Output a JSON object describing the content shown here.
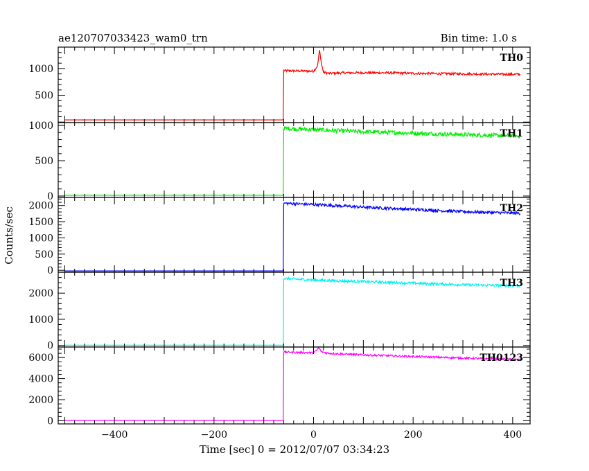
{
  "header": {
    "title": "ae120707033423_wam0_trn",
    "bin_time": "Bin time: 1.0 s"
  },
  "chart_data": {
    "type": "line",
    "title": "ae120707033423_wam0_trn",
    "xlabel": "Time [sec] 0 = 2012/07/07 03:34:23",
    "ylabel": "Counts/sec",
    "xlim": [
      -513,
      435
    ],
    "x_ticks": [
      -400,
      -200,
      0,
      200,
      400
    ],
    "x_tick_labels": [
      "−400",
      "−200",
      "0",
      "200",
      "400"
    ],
    "grid": false,
    "panels": [
      {
        "name": "TH0",
        "label": "TH0",
        "color": "#ff0000",
        "ylim": [
          -10,
          1400
        ],
        "y_ticks": [
          500,
          1000
        ],
        "y_tick_labels": [
          "500",
          "1000"
        ],
        "baseline": 40,
        "rise_time": -60,
        "segments": [
          {
            "x": [
              -60,
              0,
              8,
              12,
              16,
              20,
              30,
              60,
              150,
              200,
              300,
              415
            ],
            "y": [
              960,
              950,
              1050,
              1340,
              1080,
              930,
              910,
              920,
              920,
              910,
              900,
              890
            ]
          }
        ],
        "noise": 22
      },
      {
        "name": "TH1",
        "label": "TH1",
        "color": "#00ee00",
        "ylim": [
          -20,
          1040
        ],
        "y_ticks": [
          0,
          500,
          1000
        ],
        "y_tick_labels": [
          "0",
          "500",
          "1000"
        ],
        "baseline": 10,
        "rise_time": -60,
        "segments": [
          {
            "x": [
              -60,
              0,
              100,
              200,
              300,
              415
            ],
            "y": [
              960,
              940,
              910,
              890,
              870,
              850
            ]
          }
        ],
        "noise": 30
      },
      {
        "name": "TH2",
        "label": "TH2",
        "color": "#0000ff",
        "ylim": [
          -60,
          2250
        ],
        "y_ticks": [
          0,
          500,
          1000,
          1500,
          2000
        ],
        "y_tick_labels": [
          "0",
          "500",
          "1000",
          "1500",
          "2000"
        ],
        "baseline": -20,
        "rise_time": -60,
        "segments": [
          {
            "x": [
              -60,
              0,
              100,
              200,
              300,
              415
            ],
            "y": [
              2070,
              2030,
              1950,
              1880,
              1810,
              1760
            ]
          }
        ],
        "noise": 45
      },
      {
        "name": "TH3",
        "label": "TH3",
        "color": "#00eeee",
        "ylim": [
          -60,
          2800
        ],
        "y_ticks": [
          0,
          1000,
          2000
        ],
        "y_tick_labels": [
          "0",
          "1000",
          "2000"
        ],
        "baseline": 10,
        "rise_time": -60,
        "segments": [
          {
            "x": [
              -60,
              0,
              100,
              200,
              300,
              415
            ],
            "y": [
              2560,
              2500,
              2440,
              2380,
              2320,
              2280
            ]
          }
        ],
        "noise": 50
      },
      {
        "name": "TH0123",
        "label": "TH0123",
        "color": "#ff00ff",
        "ylim": [
          -300,
          7000
        ],
        "y_ticks": [
          0,
          2000,
          4000,
          6000
        ],
        "y_tick_labels": [
          "0",
          "2000",
          "4000",
          "6000"
        ],
        "baseline": 30,
        "rise_time": -60,
        "segments": [
          {
            "x": [
              -60,
              0,
              6,
              10,
              16,
              30,
              100,
              200,
              300,
              415
            ],
            "y": [
              6520,
              6450,
              6650,
              6950,
              6550,
              6400,
              6250,
              6100,
              5950,
              5800
            ]
          }
        ],
        "noise": 90
      }
    ]
  }
}
